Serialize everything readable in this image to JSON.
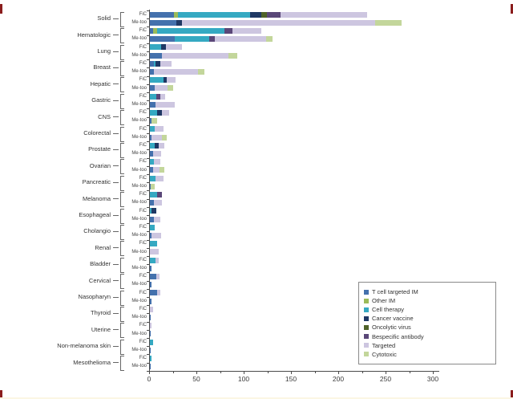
{
  "chart_data": {
    "type": "bar",
    "orientation": "horizontal-stacked",
    "bar_labels": [
      "FiC",
      "Me-too"
    ],
    "series_labels": [
      "T cell targeted IM",
      "Other IM",
      "Cell therapy",
      "Cancer vaccine",
      "Oncolytic virus",
      "Bespecific antibody",
      "Targeted",
      "Cytotoxic"
    ],
    "series_colors": [
      "#4471ad",
      "#9bbb59",
      "#35a9c2",
      "#1f3864",
      "#4f6228",
      "#5a4778",
      "#cdc6e0",
      "#c3d69b"
    ],
    "xlim": [
      0,
      300
    ],
    "x_ticks": [
      0,
      50,
      100,
      150,
      200,
      250,
      300
    ],
    "x_minor_tick_step": 25,
    "legend_position": "inside-bottom-right",
    "grid": false,
    "groups": [
      {
        "name": "Solid",
        "fic": [
          25,
          5,
          76,
          12,
          6,
          14,
          92,
          0
        ],
        "metoo": [
          28,
          0,
          0,
          6,
          0,
          0,
          204,
          28
        ]
      },
      {
        "name": "Hematologic",
        "fic": [
          3,
          5,
          71,
          0,
          0,
          8,
          31,
          0
        ],
        "metoo": [
          26,
          0,
          37,
          0,
          0,
          6,
          54,
          7
        ]
      },
      {
        "name": "Lung",
        "fic": [
          0,
          0,
          12,
          5,
          0,
          0,
          17,
          0
        ],
        "metoo": [
          13,
          0,
          0,
          0,
          0,
          0,
          70,
          9
        ]
      },
      {
        "name": "Breast",
        "fic": [
          4,
          0,
          2,
          5,
          0,
          0,
          12,
          0
        ],
        "metoo": [
          4,
          0,
          0,
          0,
          0,
          0,
          47,
          7
        ]
      },
      {
        "name": "Hepatic",
        "fic": [
          0,
          0,
          14,
          4,
          0,
          0,
          9,
          0
        ],
        "metoo": [
          5,
          0,
          0,
          0,
          0,
          0,
          14,
          6
        ]
      },
      {
        "name": "Gastric",
        "fic": [
          0,
          0,
          7,
          0,
          0,
          4,
          5,
          0
        ],
        "metoo": [
          6,
          0,
          0,
          0,
          0,
          0,
          20,
          0
        ]
      },
      {
        "name": "CNS",
        "fic": [
          0,
          0,
          8,
          5,
          0,
          0,
          7,
          0
        ],
        "metoo": [
          2,
          0,
          0,
          0,
          0,
          0,
          0,
          6
        ]
      },
      {
        "name": "Colorectal",
        "fic": [
          0,
          0,
          5,
          0,
          0,
          0,
          9,
          0
        ],
        "metoo": [
          2,
          0,
          0,
          0,
          0,
          0,
          11,
          5
        ]
      },
      {
        "name": "Prostate",
        "fic": [
          0,
          0,
          5,
          4,
          0,
          0,
          6,
          0
        ],
        "metoo": [
          3,
          0,
          0,
          0,
          0,
          0,
          9,
          0
        ]
      },
      {
        "name": "Ovarian",
        "fic": [
          0,
          0,
          4,
          0,
          0,
          0,
          7,
          0
        ],
        "metoo": [
          3,
          0,
          0,
          0,
          0,
          0,
          7,
          5
        ]
      },
      {
        "name": "Pancreatic",
        "fic": [
          0,
          0,
          6,
          0,
          0,
          0,
          8,
          0
        ],
        "metoo": [
          1,
          0,
          0,
          0,
          0,
          0,
          0,
          4
        ]
      },
      {
        "name": "Melanoma",
        "fic": [
          0,
          0,
          8,
          0,
          0,
          5,
          0,
          0
        ],
        "metoo": [
          4,
          0,
          0,
          0,
          0,
          0,
          9,
          0
        ]
      },
      {
        "name": "Esophageal",
        "fic": [
          0,
          0,
          2,
          5,
          0,
          0,
          0,
          0
        ],
        "metoo": [
          4,
          0,
          0,
          0,
          0,
          0,
          7,
          0
        ]
      },
      {
        "name": "Cholangio",
        "fic": [
          0,
          0,
          5,
          0,
          0,
          0,
          0,
          0
        ],
        "metoo": [
          2,
          0,
          0,
          0,
          0,
          0,
          10,
          0
        ]
      },
      {
        "name": "Renal",
        "fic": [
          0,
          0,
          8,
          0,
          0,
          0,
          0,
          0
        ],
        "metoo": [
          0,
          0,
          0,
          0,
          0,
          0,
          9,
          0
        ]
      },
      {
        "name": "Bladder",
        "fic": [
          0,
          0,
          6,
          0,
          0,
          0,
          3,
          0
        ],
        "metoo": [
          2,
          0,
          0,
          0,
          0,
          0,
          0,
          0
        ]
      },
      {
        "name": "Cervical",
        "fic": [
          7,
          0,
          0,
          0,
          0,
          0,
          3,
          0
        ],
        "metoo": [
          2,
          0,
          0,
          0,
          0,
          0,
          0,
          0
        ]
      },
      {
        "name": "Nasopharyn",
        "fic": [
          8,
          0,
          0,
          0,
          0,
          0,
          3,
          0
        ],
        "metoo": [
          2,
          0,
          0,
          0,
          0,
          0,
          0,
          0
        ]
      },
      {
        "name": "Thyroid",
        "fic": [
          0,
          0,
          0,
          0,
          0,
          0,
          3,
          0
        ],
        "metoo": [
          1,
          0,
          0,
          0,
          0,
          0,
          0,
          0
        ]
      },
      {
        "name": "Uterine",
        "fic": [
          0,
          0,
          0,
          0,
          0,
          0,
          2,
          0
        ],
        "metoo": [
          1,
          0,
          0,
          0,
          0,
          0,
          0,
          0
        ]
      },
      {
        "name": "Non-melanoma skin",
        "fic": [
          0,
          0,
          3,
          0,
          0,
          0,
          0,
          0
        ],
        "metoo": [
          1,
          0,
          0,
          0,
          0,
          0,
          0,
          0
        ]
      },
      {
        "name": "Mesothelioma",
        "fic": [
          0,
          0,
          2,
          0,
          0,
          0,
          0,
          0
        ],
        "metoo": [
          1,
          0,
          0,
          0,
          0,
          0,
          0,
          0
        ]
      }
    ]
  },
  "page": {
    "corner_mark_color": "#8b1d1d",
    "axis_color": "#4a4a4a"
  }
}
